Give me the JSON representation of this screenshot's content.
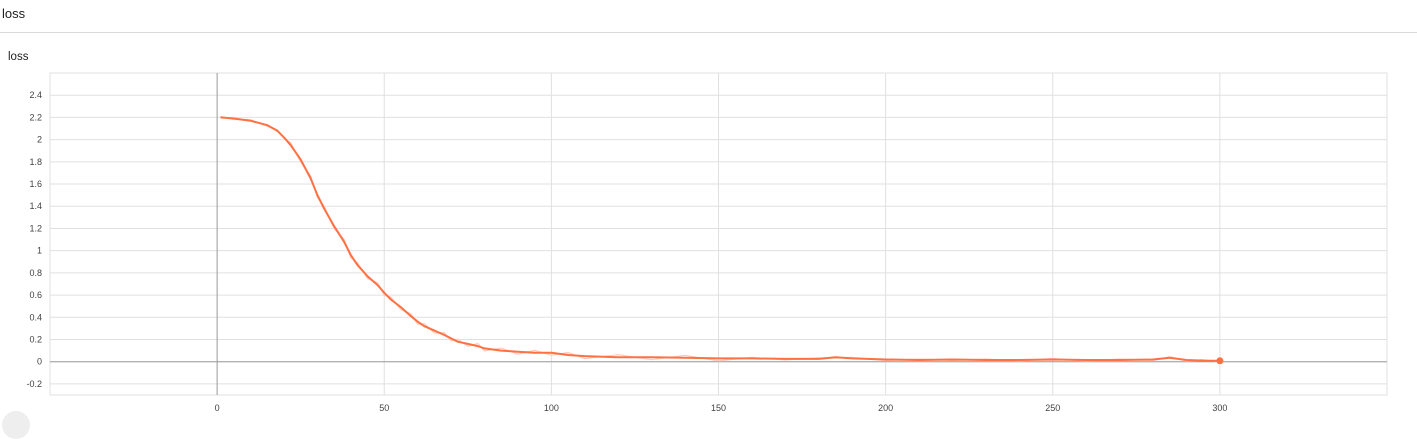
{
  "section": {
    "title": "loss"
  },
  "card": {
    "title": "loss"
  },
  "chart_data": {
    "type": "line",
    "title": "loss",
    "xlabel": "",
    "ylabel": "",
    "xlim": [
      -50,
      350
    ],
    "ylim": [
      -0.3,
      2.6
    ],
    "x_ticks": [
      0,
      50,
      100,
      150,
      200,
      250,
      300
    ],
    "y_ticks": [
      -0.2,
      0,
      0.2,
      0.4,
      0.6,
      0.8,
      1,
      1.2,
      1.4,
      1.6,
      1.8,
      2,
      2.2,
      2.4
    ],
    "grid": true,
    "legend": "none",
    "colors": {
      "line": "#ff7043",
      "raw": "#ffccbc",
      "grid": "#e0e0e0",
      "zero_axis": "#9e9e9e"
    },
    "series": [
      {
        "x": [
          1,
          5,
          10,
          15,
          18,
          20,
          22,
          25,
          28,
          30,
          32,
          35,
          38,
          40,
          42,
          45,
          48,
          50,
          52,
          55,
          58,
          60,
          62,
          65,
          68,
          70,
          72,
          75,
          78,
          80,
          85,
          90,
          95,
          100,
          105,
          110,
          120,
          130,
          140,
          150,
          160,
          170,
          180,
          185,
          190,
          200,
          210,
          220,
          230,
          240,
          250,
          260,
          270,
          280,
          285,
          290,
          295,
          300
        ],
        "y": [
          2.2,
          2.19,
          2.17,
          2.13,
          2.08,
          2.02,
          1.95,
          1.82,
          1.65,
          1.5,
          1.38,
          1.22,
          1.08,
          0.96,
          0.87,
          0.77,
          0.69,
          0.62,
          0.56,
          0.49,
          0.41,
          0.36,
          0.32,
          0.28,
          0.24,
          0.21,
          0.18,
          0.16,
          0.14,
          0.12,
          0.1,
          0.09,
          0.08,
          0.08,
          0.06,
          0.05,
          0.04,
          0.04,
          0.035,
          0.03,
          0.03,
          0.025,
          0.025,
          0.04,
          0.03,
          0.02,
          0.015,
          0.02,
          0.015,
          0.015,
          0.02,
          0.015,
          0.015,
          0.02,
          0.035,
          0.015,
          0.01,
          0.008
        ]
      }
    ]
  }
}
